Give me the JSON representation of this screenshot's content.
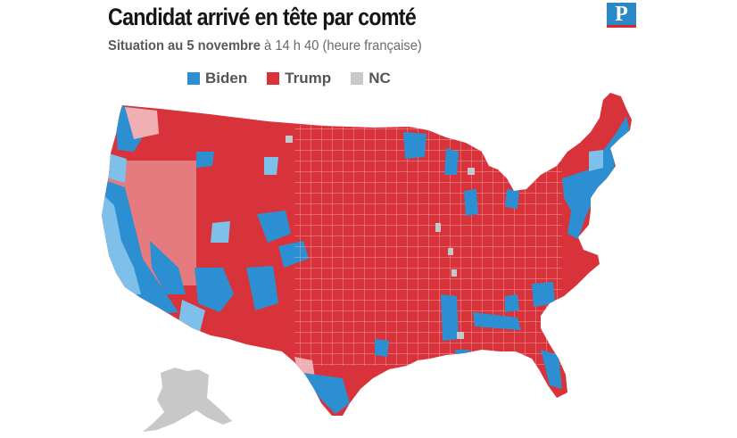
{
  "header": {
    "title": "Candidat arrivé en tête par comté",
    "subtitle_strong": "Situation au 5 novembre",
    "subtitle_rest": " à 14 h 40 (heure française)"
  },
  "logo": {
    "letter": "P",
    "color": "#2a87c8",
    "stripe_color": "#e0252b"
  },
  "legend": [
    {
      "label": "Biden",
      "color": "#2b8fd1"
    },
    {
      "label": "Trump",
      "color": "#d8333a"
    },
    {
      "label": "NC",
      "color": "#c8c8c8"
    }
  ],
  "map": {
    "colors": {
      "trump": "#d8333a",
      "trump_light": "#e57a7f",
      "trump_pale": "#f0b0b3",
      "biden": "#2b8fd1",
      "biden_light": "#7ec0ea",
      "nc": "#c8c8c8",
      "county_border": "#f4c5c7"
    }
  }
}
